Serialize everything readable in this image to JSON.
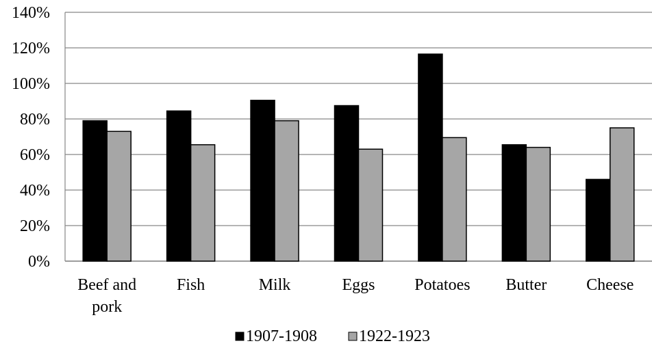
{
  "chart_data": {
    "type": "bar",
    "title": "",
    "xlabel": "",
    "ylabel": "",
    "ylim": [
      0,
      140
    ],
    "yticks": [
      0,
      20,
      40,
      60,
      80,
      100,
      120,
      140
    ],
    "ytick_labels": [
      "0%",
      "20%",
      "40%",
      "60%",
      "80%",
      "100%",
      "120%",
      "140%"
    ],
    "grid": true,
    "legend_position": "bottom",
    "categories": [
      [
        "Beef and",
        "pork"
      ],
      [
        "Fish"
      ],
      [
        "Milk"
      ],
      [
        "Eggs"
      ],
      [
        "Potatoes"
      ],
      [
        "Butter"
      ],
      [
        "Cheese"
      ]
    ],
    "series": [
      {
        "name": "1907-1908",
        "color": "#000000",
        "values": [
          79,
          84.5,
          90.5,
          87.5,
          116.5,
          65.5,
          46
        ]
      },
      {
        "name": "1922-1923",
        "color": "#a6a6a6",
        "values": [
          73,
          65.5,
          79,
          63,
          69.5,
          64,
          75
        ]
      }
    ]
  }
}
